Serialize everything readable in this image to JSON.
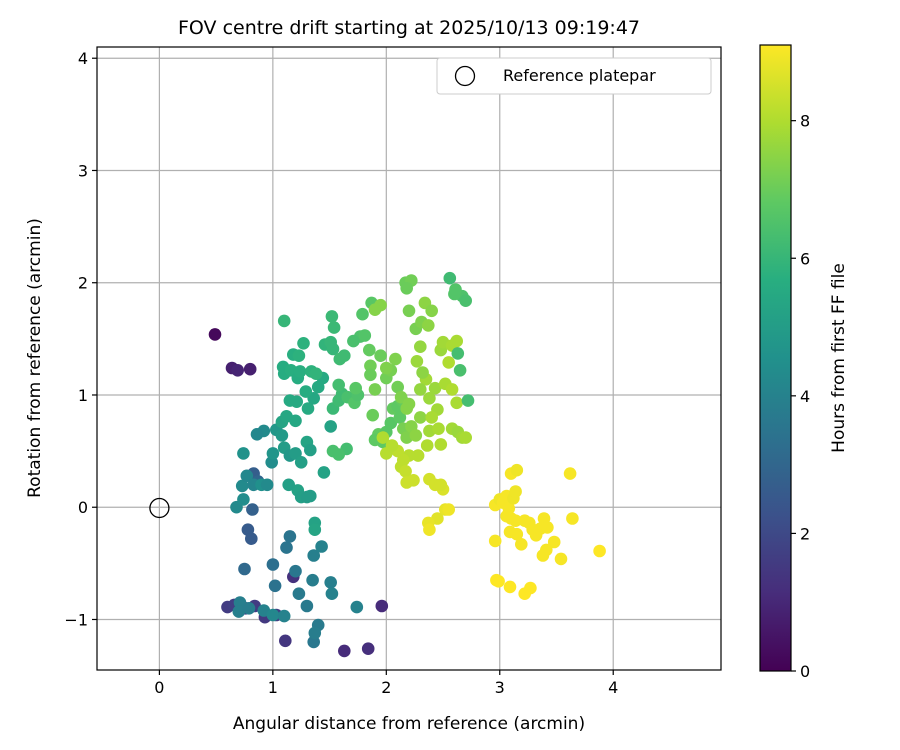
{
  "chart_data": {
    "type": "scatter",
    "title": "FOV centre drift starting at 2025/10/13 09:19:47",
    "xlabel": "Angular distance from reference (arcmin)",
    "ylabel": "Rotation from reference (arcmin)",
    "xlim": [
      -0.55,
      4.95
    ],
    "ylim": [
      -1.45,
      4.1
    ],
    "x_ticks": [
      0,
      1,
      2,
      3,
      4
    ],
    "y_ticks": [
      -1,
      0,
      1,
      2,
      3,
      4
    ],
    "x_tick_labels": [
      "0",
      "1",
      "2",
      "3",
      "4"
    ],
    "y_tick_labels": [
      "−1",
      "0",
      "1",
      "2",
      "3",
      "4"
    ],
    "grid": true,
    "legend": {
      "position": "top-right",
      "entries": [
        {
          "label": "Reference platepar",
          "marker": "open-circle"
        }
      ]
    },
    "reference_point": {
      "x": 0,
      "y": 0
    },
    "colorbar": {
      "label": "Hours from first FF file",
      "colormap": "viridis",
      "range": [
        0,
        9.1
      ],
      "ticks": [
        0,
        2,
        4,
        6,
        8
      ],
      "tick_labels": [
        "0",
        "2",
        "4",
        "6",
        "8"
      ]
    },
    "points": [
      [
        0.49,
        1.54,
        0.2
      ],
      [
        0.64,
        1.24,
        0.8
      ],
      [
        0.69,
        1.22,
        0.9
      ],
      [
        0.8,
        1.23,
        0.8
      ],
      [
        0.6,
        -0.89,
        1.6
      ],
      [
        0.66,
        -0.87,
        1.7
      ],
      [
        0.76,
        -0.9,
        1.5
      ],
      [
        0.84,
        -0.88,
        1.6
      ],
      [
        0.93,
        -0.98,
        1.5
      ],
      [
        1.03,
        -0.96,
        1.6
      ],
      [
        1.11,
        -1.19,
        1.4
      ],
      [
        1.18,
        -0.62,
        1.3
      ],
      [
        1.63,
        -1.28,
        1.1
      ],
      [
        1.84,
        -1.26,
        1.2
      ],
      [
        1.96,
        -0.88,
        1.1
      ],
      [
        0.78,
        -0.2,
        2.6
      ],
      [
        0.81,
        -0.28,
        2.6
      ],
      [
        0.83,
        0.3,
        2.7
      ],
      [
        0.82,
        -0.02,
        2.8
      ],
      [
        0.87,
        0.23,
        3.0
      ],
      [
        0.75,
        -0.55,
        3.1
      ],
      [
        1.0,
        -0.51,
        3.3
      ],
      [
        1.02,
        -0.7,
        3.4
      ],
      [
        1.12,
        -0.36,
        3.5
      ],
      [
        1.15,
        -0.26,
        3.5
      ],
      [
        1.2,
        -0.57,
        3.6
      ],
      [
        1.23,
        -0.77,
        3.7
      ],
      [
        1.3,
        -0.88,
        3.7
      ],
      [
        1.35,
        -0.65,
        3.8
      ],
      [
        1.36,
        -1.2,
        3.6
      ],
      [
        1.4,
        -1.05,
        3.7
      ],
      [
        1.37,
        -1.12,
        3.8
      ],
      [
        1.36,
        -0.43,
        3.9
      ],
      [
        1.43,
        -0.35,
        4.0
      ],
      [
        1.51,
        -0.67,
        3.9
      ],
      [
        1.52,
        -0.77,
        4.0
      ],
      [
        1.74,
        -0.89,
        4.0
      ],
      [
        0.71,
        -0.85,
        3.9
      ],
      [
        0.7,
        -0.93,
        3.9
      ],
      [
        0.79,
        -0.9,
        3.8
      ],
      [
        0.92,
        -0.92,
        4.0
      ],
      [
        1.0,
        -0.96,
        4.2
      ],
      [
        1.1,
        -0.97,
        4.0
      ],
      [
        0.68,
        0.0,
        4.3
      ],
      [
        0.74,
        0.07,
        4.4
      ],
      [
        0.73,
        0.19,
        4.3
      ],
      [
        0.77,
        0.28,
        4.2
      ],
      [
        0.83,
        0.2,
        4.1
      ],
      [
        0.9,
        0.2,
        4.5
      ],
      [
        0.95,
        0.2,
        4.3
      ],
      [
        0.99,
        0.4,
        4.4
      ],
      [
        0.92,
        0.68,
        4.3
      ],
      [
        0.86,
        0.65,
        4.2
      ],
      [
        0.74,
        0.48,
        4.6
      ],
      [
        1.0,
        0.48,
        4.7
      ],
      [
        1.03,
        0.69,
        4.8
      ],
      [
        1.08,
        0.64,
        4.9
      ],
      [
        1.1,
        0.53,
        5.0
      ],
      [
        1.15,
        0.46,
        4.8
      ],
      [
        1.2,
        0.48,
        5.0
      ],
      [
        1.22,
        0.15,
        5.2
      ],
      [
        1.25,
        0.09,
        5.1
      ],
      [
        1.3,
        0.09,
        5.0
      ],
      [
        1.33,
        0.1,
        5.0
      ],
      [
        1.14,
        0.2,
        5.1
      ],
      [
        1.37,
        -0.14,
        5.2
      ],
      [
        1.37,
        -0.2,
        5.3
      ],
      [
        1.25,
        0.4,
        5.1
      ],
      [
        1.3,
        0.58,
        5.3
      ],
      [
        1.33,
        0.51,
        5.1
      ],
      [
        1.45,
        0.31,
        5.2
      ],
      [
        1.51,
        0.72,
        5.2
      ],
      [
        1.08,
        0.76,
        5.3
      ],
      [
        1.12,
        0.81,
        5.4
      ],
      [
        1.2,
        0.77,
        5.4
      ],
      [
        1.15,
        0.95,
        5.5
      ],
      [
        1.21,
        0.94,
        5.5
      ],
      [
        1.31,
        0.88,
        5.5
      ],
      [
        1.36,
        0.97,
        5.4
      ],
      [
        1.4,
        1.07,
        5.5
      ],
      [
        1.44,
        1.15,
        5.5
      ],
      [
        1.29,
        1.03,
        5.6
      ],
      [
        1.09,
        1.25,
        5.6
      ],
      [
        1.1,
        1.19,
        5.6
      ],
      [
        1.16,
        1.22,
        5.7
      ],
      [
        1.22,
        1.15,
        5.6
      ],
      [
        1.24,
        1.21,
        5.7
      ],
      [
        1.18,
        1.36,
        5.7
      ],
      [
        1.23,
        1.35,
        5.8
      ],
      [
        1.27,
        1.46,
        5.8
      ],
      [
        1.34,
        1.21,
        5.8
      ],
      [
        1.38,
        1.19,
        5.9
      ],
      [
        1.46,
        1.45,
        5.9
      ],
      [
        1.51,
        1.47,
        6.0
      ],
      [
        1.53,
        1.41,
        6.0
      ],
      [
        1.52,
        1.7,
        6.1
      ],
      [
        1.54,
        1.6,
        6.1
      ],
      [
        1.59,
        1.32,
        6.2
      ],
      [
        1.63,
        1.35,
        6.2
      ],
      [
        1.53,
        0.88,
        6.1
      ],
      [
        1.58,
        0.95,
        6.2
      ],
      [
        1.61,
        1.01,
        6.2
      ],
      [
        1.58,
        1.09,
        6.3
      ],
      [
        1.66,
        0.98,
        6.4
      ],
      [
        1.1,
        1.66,
        6.0
      ],
      [
        1.65,
        0.52,
        6.3
      ],
      [
        1.58,
        0.47,
        6.4
      ],
      [
        1.53,
        0.5,
        6.4
      ],
      [
        1.72,
        0.93,
        6.6
      ],
      [
        1.75,
        1.0,
        6.5
      ],
      [
        1.77,
        1.52,
        6.5
      ],
      [
        1.81,
        1.53,
        6.6
      ],
      [
        1.71,
        1.48,
        6.4
      ],
      [
        1.73,
        1.06,
        6.7
      ],
      [
        1.79,
        1.72,
        6.6
      ],
      [
        1.87,
        1.82,
        6.7
      ],
      [
        1.85,
        1.4,
        6.9
      ],
      [
        1.86,
        1.26,
        7.1
      ],
      [
        1.86,
        1.18,
        7.0
      ],
      [
        1.9,
        1.05,
        7.2
      ],
      [
        1.88,
        0.82,
        7.0
      ],
      [
        1.93,
        0.65,
        6.9
      ],
      [
        1.9,
        0.6,
        6.8
      ],
      [
        1.97,
        0.58,
        6.8
      ],
      [
        2.0,
        0.67,
        6.7
      ],
      [
        2.04,
        0.75,
        6.7
      ],
      [
        2.06,
        0.88,
        6.9
      ],
      [
        2.1,
        0.9,
        6.8
      ],
      [
        2.12,
        0.8,
        6.8
      ],
      [
        2.14,
        0.95,
        6.9
      ],
      [
        1.95,
        1.35,
        7.0
      ],
      [
        2.0,
        1.15,
        7.1
      ],
      [
        2.04,
        1.22,
        7.2
      ],
      [
        2.08,
        1.32,
        7.3
      ],
      [
        2.1,
        1.07,
        7.1
      ],
      [
        2.13,
        0.98,
        7.3
      ],
      [
        2.18,
        0.88,
        7.4
      ],
      [
        2.2,
        0.92,
        7.4
      ],
      [
        2.15,
        0.7,
        7.2
      ],
      [
        2.18,
        0.62,
        7.3
      ],
      [
        2.22,
        0.72,
        7.4
      ],
      [
        2.26,
        0.64,
        7.5
      ],
      [
        2.3,
        0.8,
        7.5
      ],
      [
        2.17,
        2.0,
        7.0
      ],
      [
        2.22,
        2.02,
        7.1
      ],
      [
        2.18,
        1.95,
        7.0
      ],
      [
        2.2,
        1.75,
        7.2
      ],
      [
        2.26,
        1.59,
        7.2
      ],
      [
        2.31,
        1.65,
        7.3
      ],
      [
        2.34,
        1.82,
        7.5
      ],
      [
        2.37,
        1.62,
        7.5
      ],
      [
        2.4,
        1.75,
        7.4
      ],
      [
        2.3,
        1.43,
        7.6
      ],
      [
        2.27,
        1.3,
        7.7
      ],
      [
        2.35,
        1.14,
        7.8
      ],
      [
        2.3,
        1.05,
        7.6
      ],
      [
        2.38,
        0.97,
        7.7
      ],
      [
        2.43,
        1.06,
        7.7
      ],
      [
        2.45,
        0.87,
        7.8
      ],
      [
        2.4,
        0.8,
        7.9
      ],
      [
        2.38,
        0.68,
        7.8
      ],
      [
        2.46,
        0.7,
        7.9
      ],
      [
        2.48,
        0.56,
        8.0
      ],
      [
        2.36,
        0.55,
        8.0
      ],
      [
        2.28,
        0.46,
        8.1
      ],
      [
        2.2,
        0.46,
        8.1
      ],
      [
        2.15,
        0.42,
        8.2
      ],
      [
        2.1,
        0.5,
        8.2
      ],
      [
        2.05,
        0.55,
        8.1
      ],
      [
        1.97,
        0.62,
        8.0
      ],
      [
        2.0,
        0.48,
        8.1
      ],
      [
        2.13,
        0.36,
        8.2
      ],
      [
        2.17,
        0.32,
        8.3
      ],
      [
        2.24,
        0.24,
        8.4
      ],
      [
        2.18,
        0.22,
        8.4
      ],
      [
        2.38,
        0.25,
        8.5
      ],
      [
        2.43,
        0.2,
        8.5
      ],
      [
        2.5,
        0.16,
        8.6
      ],
      [
        2.48,
        0.2,
        8.5
      ],
      [
        2.48,
        1.4,
        7.7
      ],
      [
        2.5,
        1.47,
        7.8
      ],
      [
        2.58,
        1.44,
        7.9
      ],
      [
        2.62,
        1.48,
        7.9
      ],
      [
        2.55,
        1.29,
        8.0
      ],
      [
        2.52,
        1.1,
        7.9
      ],
      [
        2.58,
        1.05,
        8.0
      ],
      [
        2.62,
        0.93,
        7.9
      ],
      [
        2.58,
        0.7,
        7.8
      ],
      [
        2.63,
        0.67,
        7.7
      ],
      [
        2.67,
        0.62,
        7.8
      ],
      [
        2.7,
        0.62,
        7.9
      ],
      [
        2.63,
        1.37,
        6.3
      ],
      [
        2.65,
        1.22,
        6.4
      ],
      [
        2.67,
        1.88,
        6.5
      ],
      [
        2.7,
        1.84,
        6.4
      ],
      [
        2.56,
        2.04,
        6.2
      ],
      [
        2.72,
        0.95,
        6.3
      ],
      [
        2.6,
        1.9,
        6.6
      ],
      [
        2.61,
        1.94,
        6.6
      ],
      [
        1.95,
        1.8,
        7.4
      ],
      [
        1.9,
        1.76,
        7.4
      ],
      [
        2.0,
        1.24,
        7.3
      ],
      [
        2.32,
        1.2,
        7.5
      ],
      [
        2.52,
        -0.02,
        8.8
      ],
      [
        2.45,
        -0.1,
        8.7
      ],
      [
        2.37,
        -0.14,
        8.8
      ],
      [
        2.38,
        -0.2,
        8.9
      ],
      [
        2.55,
        -0.02,
        8.9
      ],
      [
        2.96,
        -0.3,
        9.0
      ],
      [
        2.96,
        0.02,
        9.0
      ],
      [
        3.0,
        0.07,
        8.9
      ],
      [
        3.03,
        0.04,
        9.0
      ],
      [
        3.06,
        0.1,
        9.0
      ],
      [
        3.08,
        -0.01,
        9.0
      ],
      [
        3.1,
        -0.1,
        9.0
      ],
      [
        3.12,
        0.08,
        8.9
      ],
      [
        3.14,
        0.14,
        8.9
      ],
      [
        3.1,
        0.3,
        9.0
      ],
      [
        3.15,
        0.33,
        8.9
      ],
      [
        3.14,
        -0.12,
        9.0
      ],
      [
        3.06,
        -0.08,
        9.0
      ],
      [
        3.09,
        -0.22,
        9.0
      ],
      [
        3.15,
        -0.24,
        9.0
      ],
      [
        3.19,
        -0.33,
        9.0
      ],
      [
        3.22,
        -0.12,
        9.0
      ],
      [
        3.26,
        -0.14,
        9.0
      ],
      [
        3.29,
        -0.2,
        9.0
      ],
      [
        3.32,
        -0.25,
        9.0
      ],
      [
        3.36,
        -0.19,
        9.0
      ],
      [
        3.39,
        -0.1,
        9.0
      ],
      [
        3.42,
        -0.18,
        9.0
      ],
      [
        3.38,
        -0.43,
        9.0
      ],
      [
        3.41,
        -0.38,
        9.0
      ],
      [
        3.48,
        -0.31,
        9.0
      ],
      [
        3.54,
        -0.46,
        9.0
      ],
      [
        3.62,
        0.3,
        9.0
      ],
      [
        3.64,
        -0.1,
        9.0
      ],
      [
        3.88,
        -0.39,
        9.1
      ],
      [
        2.97,
        -0.65,
        9.1
      ],
      [
        2.99,
        -0.66,
        9.1
      ],
      [
        3.09,
        -0.71,
        9.1
      ],
      [
        3.22,
        -0.77,
        9.1
      ],
      [
        3.27,
        -0.72,
        9.1
      ]
    ]
  }
}
